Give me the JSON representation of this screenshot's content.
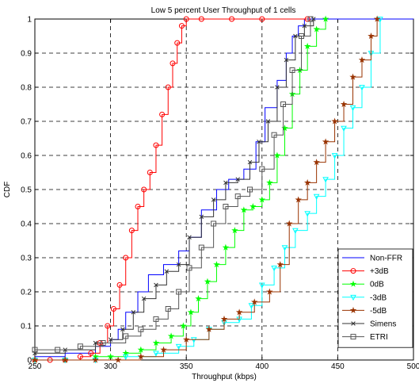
{
  "chart_data": {
    "type": "line",
    "title": "Low 5 percent User Throughput of 1 cells",
    "xlabel": "Throughput (kbps)",
    "ylabel": "CDF",
    "xlim": [
      250,
      500
    ],
    "ylim": [
      0,
      1
    ],
    "xticks": [
      "250",
      "300",
      "350",
      "400",
      "450",
      "500"
    ],
    "yticks": [
      "0",
      "0.1",
      "0.2",
      "0.3",
      "0.4",
      "0.5",
      "0.6",
      "0.7",
      "0.8",
      "0.9",
      "1"
    ],
    "grid": true,
    "legend_position": "bottom-right",
    "series": [
      {
        "name": "Non-FFR",
        "color": "#0000ff",
        "marker": "none",
        "x": [
          250,
          270,
          290,
          300,
          305,
          310,
          318,
          325,
          335,
          345,
          352,
          360,
          370,
          378,
          388,
          396,
          402,
          410,
          416,
          420,
          424,
          428,
          440,
          500
        ],
        "y": [
          0.01,
          0.02,
          0.04,
          0.06,
          0.09,
          0.14,
          0.2,
          0.25,
          0.28,
          0.32,
          0.36,
          0.44,
          0.5,
          0.53,
          0.56,
          0.64,
          0.74,
          0.82,
          0.9,
          0.95,
          0.98,
          1,
          1,
          1
        ]
      },
      {
        "name": "+3dB",
        "color": "#ff0000",
        "marker": "circle",
        "x": [
          250,
          260,
          270,
          280,
          287,
          293,
          298,
          302,
          306,
          310,
          314,
          318,
          322,
          326,
          330,
          334,
          338,
          341,
          344,
          347,
          350,
          360,
          380,
          400,
          430
        ],
        "y": [
          0,
          0,
          0,
          0.01,
          0.02,
          0.05,
          0.1,
          0.15,
          0.22,
          0.3,
          0.38,
          0.45,
          0.5,
          0.55,
          0.63,
          0.72,
          0.8,
          0.87,
          0.93,
          0.98,
          1,
          1,
          1,
          1,
          1
        ]
      },
      {
        "name": "0dB",
        "color": "#00ff00",
        "marker": "star",
        "x": [
          250,
          270,
          290,
          300,
          310,
          320,
          330,
          340,
          348,
          353,
          358,
          364,
          370,
          376,
          382,
          388,
          394,
          400,
          405,
          410,
          415,
          420,
          425,
          430,
          436,
          442
        ],
        "y": [
          0,
          0,
          0.01,
          0.01,
          0.02,
          0.03,
          0.05,
          0.07,
          0.1,
          0.14,
          0.18,
          0.23,
          0.28,
          0.33,
          0.38,
          0.44,
          0.45,
          0.47,
          0.52,
          0.6,
          0.68,
          0.78,
          0.85,
          0.92,
          0.97,
          1
        ]
      },
      {
        "name": "-3dB",
        "color": "#00ffff",
        "marker": "triangle",
        "x": [
          250,
          270,
          290,
          310,
          330,
          345,
          355,
          365,
          375,
          385,
          393,
          400,
          408,
          415,
          422,
          430,
          436,
          442,
          448,
          454,
          460,
          466,
          472,
          478
        ],
        "y": [
          0,
          0,
          0,
          0.01,
          0.02,
          0.04,
          0.06,
          0.09,
          0.11,
          0.12,
          0.16,
          0.22,
          0.27,
          0.33,
          0.38,
          0.43,
          0.48,
          0.53,
          0.6,
          0.68,
          0.74,
          0.8,
          0.9,
          1
        ]
      },
      {
        "name": "-5dB",
        "color": "#993300",
        "marker": "star",
        "x": [
          250,
          270,
          290,
          305,
          320,
          335,
          350,
          365,
          375,
          385,
          395,
          405,
          412,
          418,
          424,
          430,
          436,
          442,
          448,
          454,
          460,
          466,
          472,
          476
        ],
        "y": [
          0,
          0,
          0,
          0,
          0.01,
          0.03,
          0.06,
          0.09,
          0.12,
          0.14,
          0.17,
          0.2,
          0.28,
          0.4,
          0.47,
          0.52,
          0.58,
          0.64,
          0.7,
          0.75,
          0.83,
          0.88,
          0.95,
          1
        ]
      },
      {
        "name": "Simens",
        "color": "#333333",
        "marker": "x",
        "x": [
          250,
          270,
          290,
          300,
          308,
          315,
          322,
          330,
          337,
          345,
          352,
          360,
          368,
          376,
          384,
          392,
          398,
          404,
          410,
          416,
          422,
          428,
          434
        ],
        "y": [
          0.02,
          0.03,
          0.05,
          0.06,
          0.09,
          0.14,
          0.18,
          0.22,
          0.26,
          0.28,
          0.36,
          0.42,
          0.47,
          0.52,
          0.53,
          0.58,
          0.64,
          0.7,
          0.8,
          0.88,
          0.95,
          0.98,
          1
        ]
      },
      {
        "name": "ETRI",
        "color": "#555555",
        "marker": "square",
        "x": [
          250,
          265,
          280,
          295,
          310,
          320,
          330,
          338,
          345,
          352,
          360,
          368,
          376,
          384,
          392,
          400,
          408,
          414,
          420,
          426,
          432
        ],
        "y": [
          0.03,
          0.03,
          0.04,
          0.05,
          0.07,
          0.09,
          0.12,
          0.15,
          0.2,
          0.27,
          0.33,
          0.4,
          0.45,
          0.48,
          0.5,
          0.56,
          0.66,
          0.75,
          0.85,
          0.95,
          1
        ]
      }
    ]
  }
}
